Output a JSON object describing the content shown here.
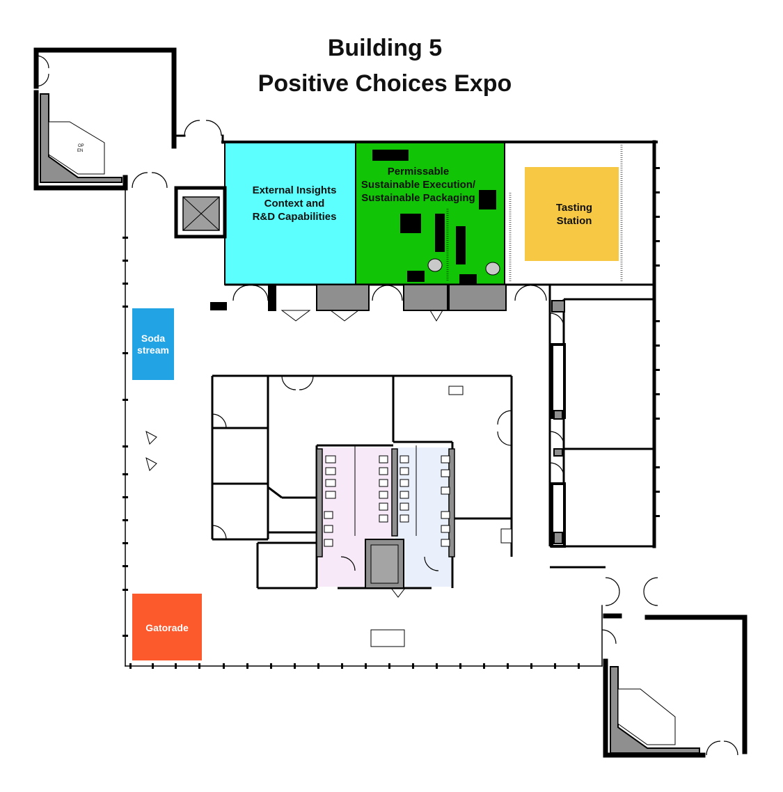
{
  "title": {
    "line1": "Building 5",
    "line2": "Positive Choices Expo"
  },
  "zones": {
    "external_insights": {
      "line1": "External Insights",
      "line2": "Context and",
      "line3": "R&D Capabilities",
      "color": "#5cfffe"
    },
    "permissable": {
      "line1": "Permissable",
      "line2": "Sustainable Execution/",
      "line3": "Sustainable Packaging",
      "color": "#11c506"
    },
    "tasting": {
      "line1": "Tasting",
      "line2": "Station",
      "color": "#f7c843"
    },
    "sodastream": {
      "line1": "Soda",
      "line2": "stream",
      "color": "#22a3e4"
    },
    "gatorade": {
      "line1": "Gatorade",
      "color": "#fc5a2c"
    }
  },
  "door_sign": {
    "line1": "OP",
    "line2": "EN"
  },
  "colors": {
    "wall": "#000000",
    "core_fill": "#8f8f8f",
    "womens_restroom_tint": "#f7e9f7",
    "mens_restroom_tint": "#e9f0fb"
  }
}
